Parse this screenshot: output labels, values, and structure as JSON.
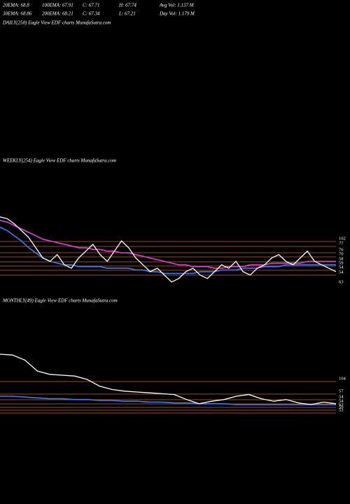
{
  "header": {
    "row1": [
      "20EMA: 68.8",
      "100EMA: 67.91",
      "C: 67.71",
      "H: 67.74",
      "Avg Vol: 1.137 M"
    ],
    "row2": [
      "30EMA: 68.86",
      "200EMA: 68.21",
      "C: 67.34",
      "L: 67.21",
      "Day Vol: 1.179 M"
    ],
    "daily_title": "DAILY(250) Eagle  View  EDF charts MunafaSutra.com"
  },
  "chart_data": [
    {
      "type": "line",
      "title": "WEEKLY(254) Eagle  View  EDF charts MunafaSutra.com",
      "ylim": [
        55,
        100
      ],
      "level_color": "#c8651b",
      "levels": [
        102,
        77,
        76,
        70,
        58,
        59,
        54,
        54,
        63
      ],
      "series": [
        {
          "name": "Price",
          "color": "#ffffff",
          "values": [
            98,
            97,
            94,
            90,
            86,
            80,
            74,
            72,
            76,
            70,
            68,
            74,
            78,
            82,
            76,
            72,
            78,
            84,
            80,
            74,
            70,
            66,
            68,
            64,
            60,
            62,
            66,
            68,
            64,
            62,
            66,
            70,
            68,
            72,
            66,
            64,
            68,
            70,
            74,
            76,
            72,
            70,
            74,
            78,
            72,
            70,
            68,
            66
          ]
        },
        {
          "name": "EMA-slow",
          "color": "#e040e0",
          "values": [
            96,
            95,
            93,
            91,
            89,
            87,
            85,
            84,
            83,
            82,
            81,
            80,
            80,
            79,
            79,
            78,
            78,
            77,
            77,
            76,
            75,
            74,
            73,
            72,
            71,
            70,
            70,
            69,
            69,
            69,
            68,
            68,
            69,
            69,
            69,
            70,
            70,
            70,
            71,
            71,
            71,
            71,
            71,
            72,
            72,
            72,
            72,
            72
          ]
        },
        {
          "name": "EMA-fast",
          "color": "#3a7bff",
          "values": [
            92,
            90,
            87,
            84,
            80,
            77,
            74,
            72,
            71,
            70,
            70,
            69,
            69,
            69,
            69,
            68,
            68,
            68,
            68,
            67,
            67,
            66,
            66,
            65,
            65,
            65,
            65,
            65,
            66,
            66,
            66,
            67,
            67,
            67,
            68,
            68,
            68,
            69,
            69,
            69,
            70,
            70,
            70,
            70,
            70,
            70,
            70,
            70
          ]
        }
      ]
    },
    {
      "type": "line",
      "title": "MONTHLY(49) Eagle  View  EDF charts MunafaSutra.com",
      "ylim": [
        50,
        125
      ],
      "level_color": "#c8651b",
      "levels": [
        104,
        57,
        54,
        54,
        63,
        59,
        53
      ],
      "series": [
        {
          "name": "Price",
          "color": "#ffffff",
          "values": [
            120,
            119,
            113,
            100,
            96,
            95,
            94,
            90,
            82,
            78,
            76,
            75,
            74,
            73,
            72,
            66,
            61,
            64,
            66,
            70,
            72,
            67,
            64,
            66,
            62,
            60,
            63,
            61
          ]
        },
        {
          "name": "EMA",
          "color": "#3a7bff",
          "values": [
            70,
            70,
            69,
            68,
            67,
            67,
            66,
            66,
            65,
            65,
            64,
            64,
            63,
            63,
            62,
            62,
            61,
            61,
            61,
            60,
            60,
            60,
            60,
            60,
            60,
            60,
            60,
            60
          ]
        }
      ]
    }
  ]
}
